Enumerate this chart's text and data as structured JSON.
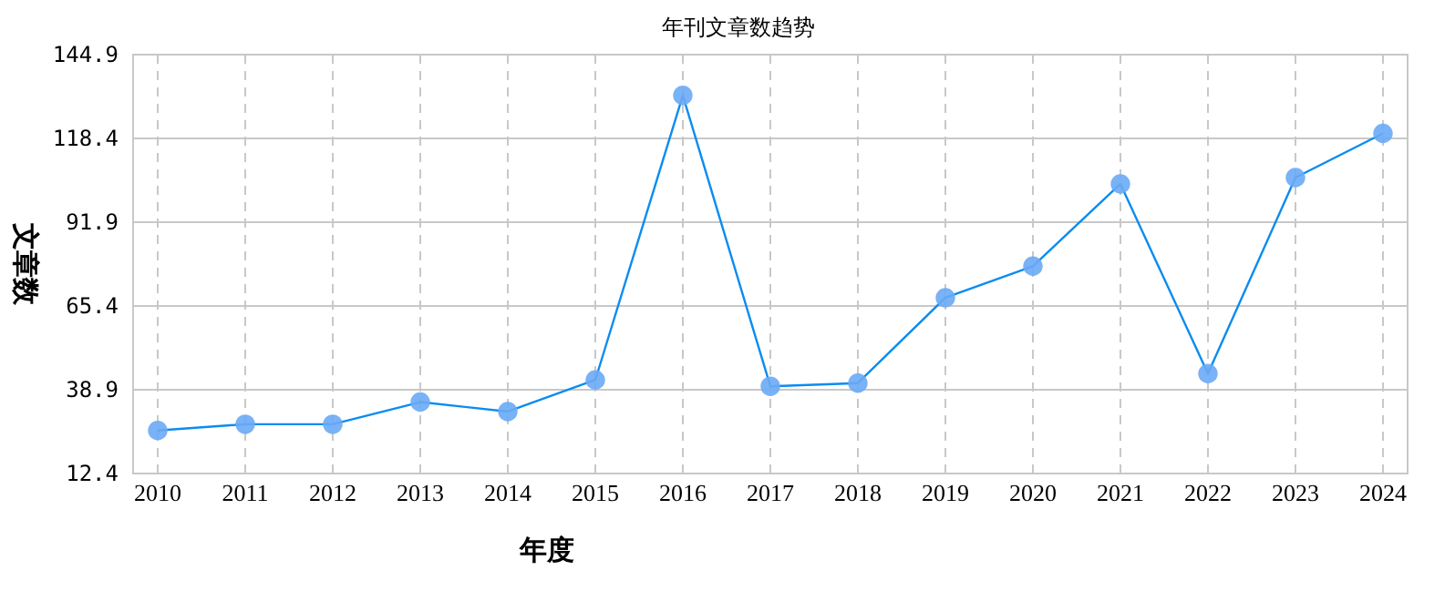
{
  "chart_data": {
    "type": "line",
    "title": "年刊文章数趋势",
    "xlabel": "年度",
    "ylabel": "文章数",
    "categories": [
      "2010",
      "2011",
      "2012",
      "2013",
      "2014",
      "2015",
      "2016",
      "2017",
      "2018",
      "2019",
      "2020",
      "2021",
      "2022",
      "2023",
      "2024"
    ],
    "series": [
      {
        "color": "#0a8cf0",
        "values": [
          26,
          28,
          28,
          35,
          32,
          42,
          132,
          40,
          41,
          68,
          78,
          104,
          44,
          106,
          120
        ]
      }
    ],
    "ylim": [
      12.4,
      144.9
    ],
    "yticks": [
      12.4,
      38.9,
      65.4,
      91.9,
      118.4,
      144.9
    ],
    "grid": true,
    "marker": "circle",
    "line_style": "solid"
  }
}
